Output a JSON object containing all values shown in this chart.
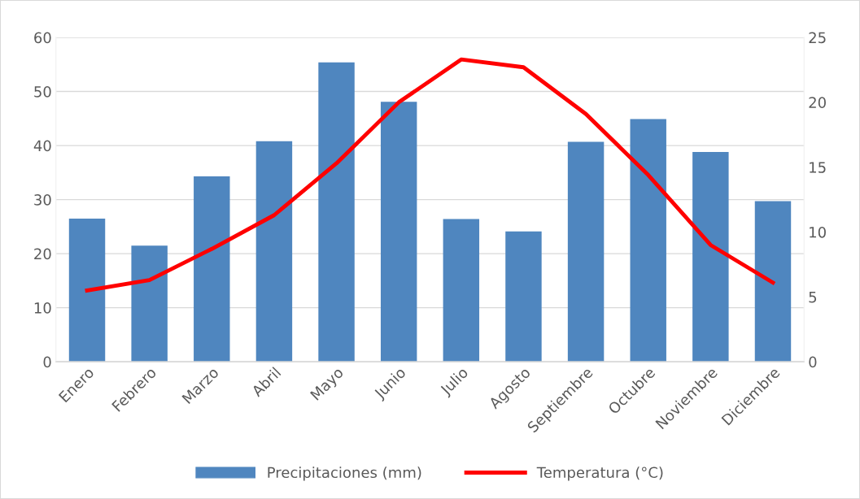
{
  "chart_data": {
    "type": "bar",
    "categories": [
      "Enero",
      "Febrero",
      "Marzo",
      "Abril",
      "Mayo",
      "Junio",
      "Julio",
      "Agosto",
      "Septiembre",
      "Octubre",
      "Noviembre",
      "Diciembre"
    ],
    "series": [
      {
        "name": "Precipitaciones (mm)",
        "color": "#4f86bf",
        "values": [
          26.5,
          21.5,
          34.3,
          40.8,
          55.4,
          48.1,
          26.4,
          24.1,
          40.7,
          44.9,
          38.8,
          29.7
        ]
      },
      {
        "name": "Temperatura (°C)",
        "type": "line",
        "axis": "y2",
        "color": "#ff0000",
        "values": [
          5.5,
          6.3,
          8.7,
          11.3,
          15.3,
          20.0,
          23.3,
          22.7,
          19.1,
          14.4,
          9.0,
          6.1
        ]
      }
    ],
    "ylim": [
      0,
      60
    ],
    "yticks": [
      0,
      10,
      20,
      30,
      40,
      50,
      60
    ],
    "y2lim": [
      0,
      25
    ],
    "y2ticks": [
      0,
      5,
      10,
      15,
      20,
      25
    ],
    "grid": "y",
    "legend": "bottom",
    "marker": "none",
    "line_style": "solid"
  }
}
